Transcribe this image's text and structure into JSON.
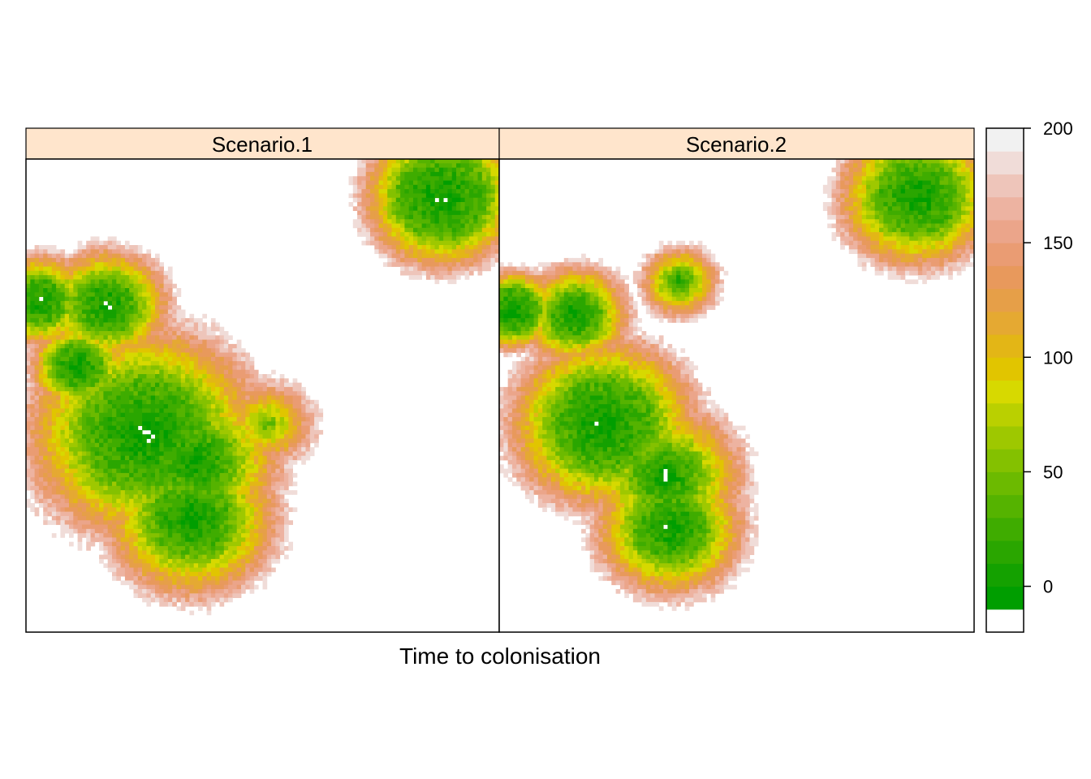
{
  "chart_data": {
    "type": "heatmap",
    "xlabel": "Time to colonisation",
    "ylabel": "",
    "grid": false,
    "legend_position": "right",
    "panels": [
      {
        "name": "Scenario.1",
        "clusters": [
          {
            "x": 0.17,
            "y": 0.69,
            "radius": 0.16,
            "core": 0.06,
            "extent_max": 190
          },
          {
            "x": 0.25,
            "y": 0.42,
            "radius": 0.3,
            "core": 0.12,
            "extent_max": 190
          },
          {
            "x": 0.36,
            "y": 0.36,
            "radius": 0.22,
            "core": 0.07,
            "extent_max": 190
          },
          {
            "x": 0.35,
            "y": 0.24,
            "radius": 0.22,
            "core": 0.08,
            "extent_max": 190
          },
          {
            "x": 0.03,
            "y": 0.7,
            "radius": 0.13,
            "core": 0.05,
            "extent_max": 190
          },
          {
            "x": 0.11,
            "y": 0.56,
            "radius": 0.12,
            "core": 0.05,
            "extent_max": 190
          },
          {
            "x": 0.88,
            "y": 0.92,
            "radius": 0.2,
            "core": 0.09,
            "extent_max": 190
          },
          {
            "x": 0.51,
            "y": 0.44,
            "radius": 0.12,
            "core": 0.0,
            "extent_max": 190
          }
        ]
      },
      {
        "name": "Scenario.2",
        "clusters": [
          {
            "x": 0.16,
            "y": 0.67,
            "radius": 0.14,
            "core": 0.05,
            "extent_max": 190
          },
          {
            "x": 0.22,
            "y": 0.44,
            "radius": 0.24,
            "core": 0.1,
            "extent_max": 190
          },
          {
            "x": 0.35,
            "y": 0.33,
            "radius": 0.2,
            "core": 0.06,
            "extent_max": 190
          },
          {
            "x": 0.36,
            "y": 0.22,
            "radius": 0.19,
            "core": 0.07,
            "extent_max": 190
          },
          {
            "x": 0.03,
            "y": 0.68,
            "radius": 0.11,
            "core": 0.05,
            "extent_max": 190
          },
          {
            "x": 0.38,
            "y": 0.74,
            "radius": 0.1,
            "core": 0.02,
            "extent_max": 190
          },
          {
            "x": 0.88,
            "y": 0.92,
            "radius": 0.2,
            "core": 0.08,
            "extent_max": 190
          }
        ]
      }
    ],
    "colorkey": {
      "ticks": [
        0,
        50,
        100,
        150,
        200
      ],
      "breaks": [
        -10,
        0,
        10,
        20,
        30,
        40,
        50,
        60,
        70,
        80,
        90,
        100,
        110,
        120,
        130,
        140,
        150,
        160,
        170,
        180,
        190,
        200
      ],
      "colors": [
        "#009e00",
        "#14a100",
        "#2aa600",
        "#3fac00",
        "#55b300",
        "#6cba00",
        "#84c100",
        "#9ec800",
        "#bad000",
        "#d7d900",
        "#e1c500",
        "#e3b616",
        "#e5a932",
        "#e69f48",
        "#e8995c",
        "#ea9c73",
        "#eba58a",
        "#edb3a1",
        "#eec5ba",
        "#f0dcd8",
        "#f1f1f1"
      ],
      "background": "#ffffff"
    },
    "strip_color": "#ffe5cc"
  }
}
